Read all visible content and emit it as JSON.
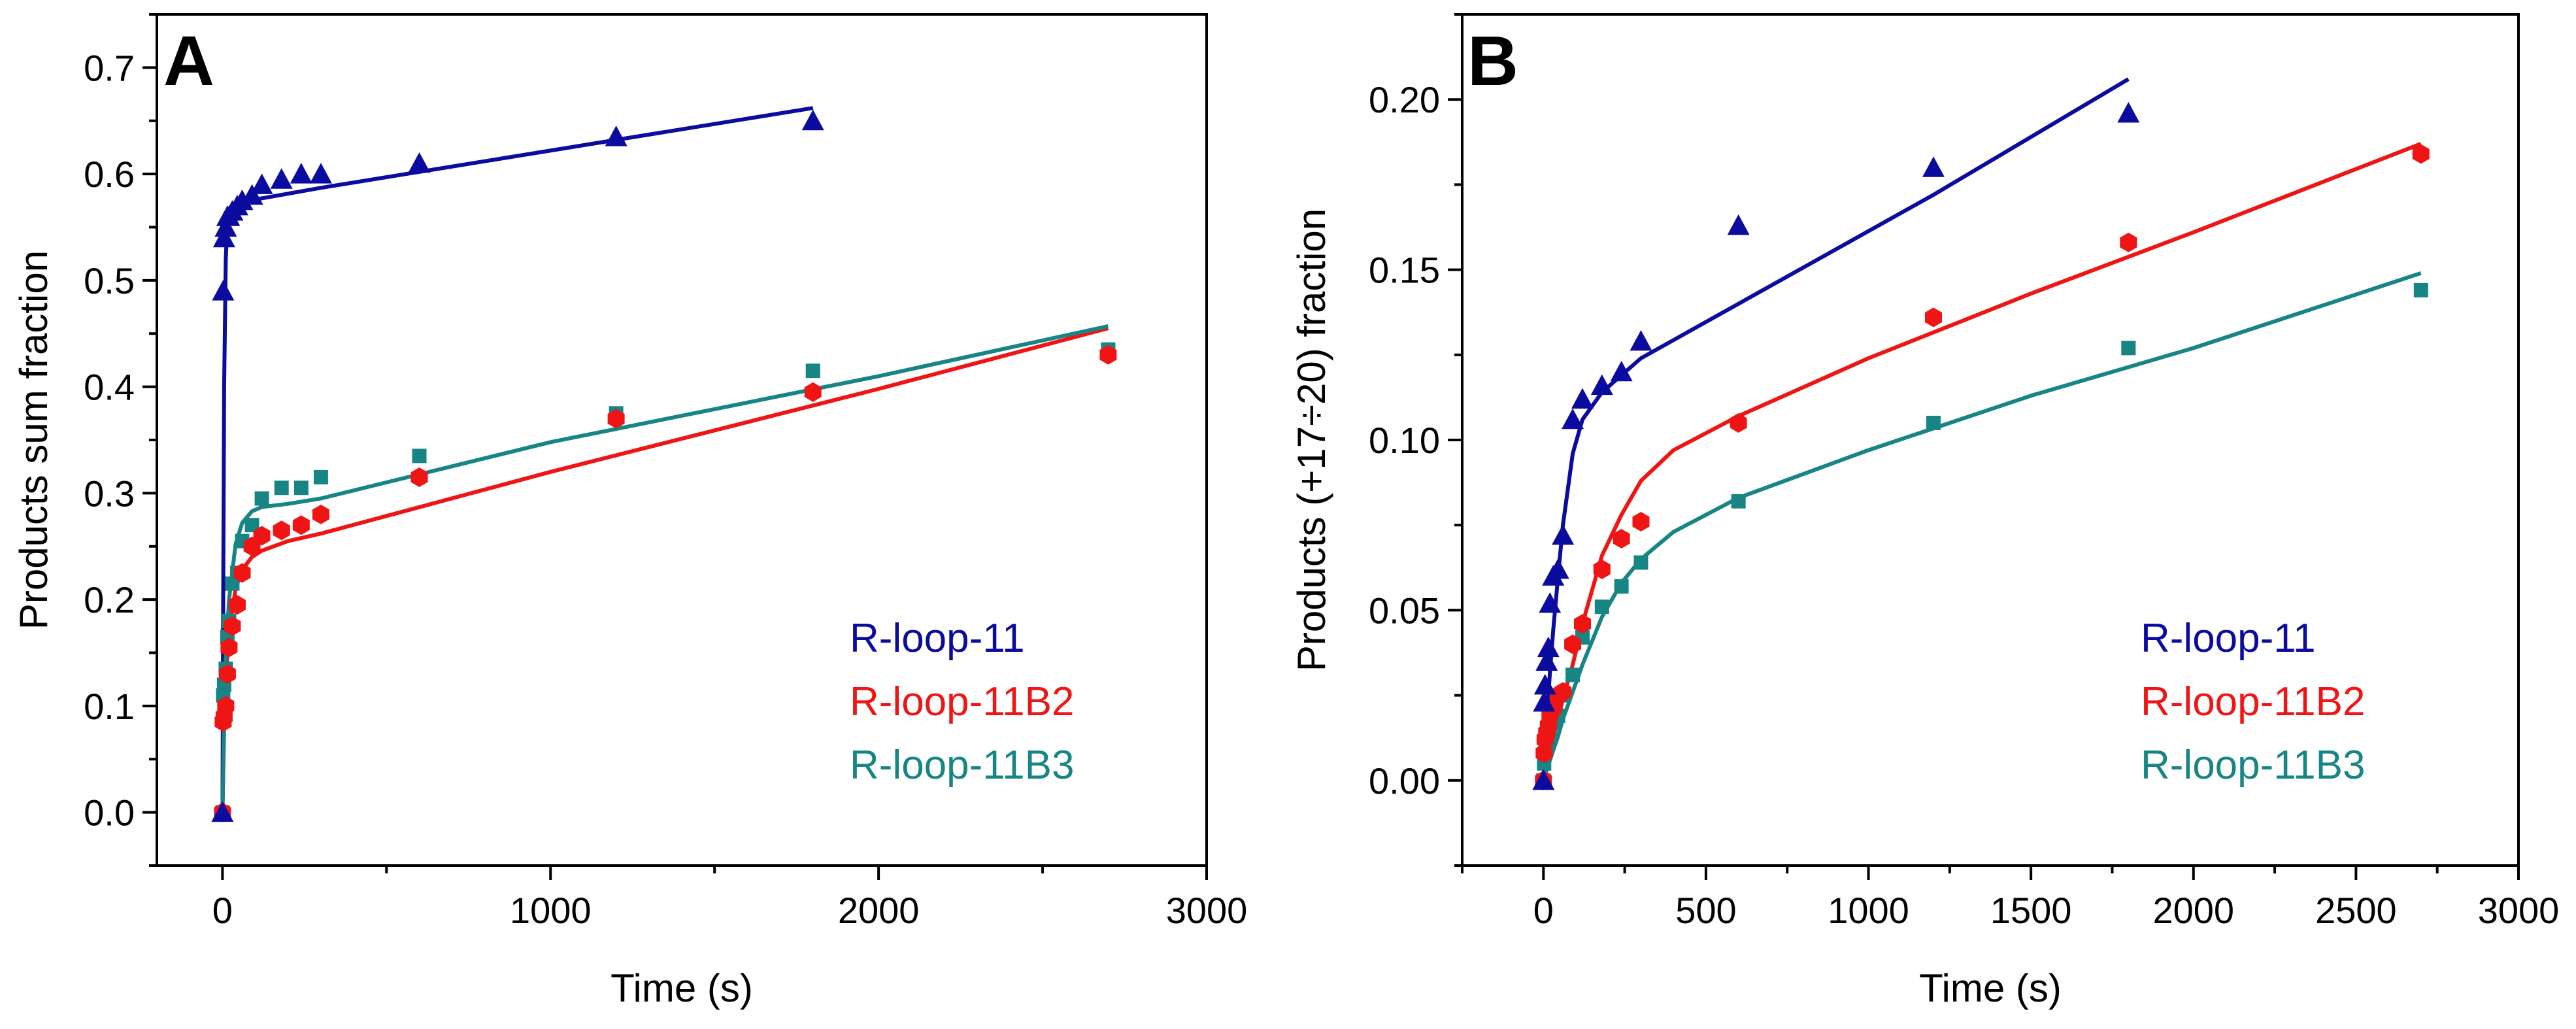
{
  "chart_data": [
    {
      "type": "scatter",
      "panel": "A",
      "xlabel": "Time (s)",
      "ylabel": "Products sum fraction",
      "xlim": [
        -200,
        3000
      ],
      "ylim": [
        -0.05,
        0.75
      ],
      "xticks": [
        0,
        1000,
        2000,
        3000
      ],
      "xtick_labels": [
        "0",
        "1000",
        "2000",
        "3000"
      ],
      "yticks": [
        0.0,
        0.1,
        0.2,
        0.3,
        0.4,
        0.5,
        0.6,
        0.7
      ],
      "ytick_labels": [
        "0.0",
        "0.1",
        "0.2",
        "0.3",
        "0.4",
        "0.5",
        "0.6",
        "0.7"
      ],
      "legend_position": "bottom-right",
      "series": [
        {
          "name": "R-loop-11",
          "color": "#0b0ba0",
          "marker": "triangle",
          "x": [
            0,
            2,
            5,
            10,
            15,
            20,
            30,
            45,
            60,
            90,
            120,
            180,
            240,
            300,
            600,
            1200,
            1800
          ],
          "y": [
            0,
            0.49,
            0.54,
            0.55,
            0.56,
            0.56,
            0.565,
            0.57,
            0.575,
            0.58,
            0.59,
            0.595,
            0.6,
            0.6,
            0.61,
            0.635,
            0.65
          ],
          "fit": [
            [
              0,
              0
            ],
            [
              2,
              0.19
            ],
            [
              5,
              0.4
            ],
            [
              10,
              0.52
            ],
            [
              15,
              0.555
            ],
            [
              20,
              0.565
            ],
            [
              30,
              0.57
            ],
            [
              60,
              0.573
            ],
            [
              100,
              0.576
            ],
            [
              300,
              0.587
            ],
            [
              800,
              0.612
            ],
            [
              1200,
              0.632
            ],
            [
              1800,
              0.662
            ]
          ]
        },
        {
          "name": "R-loop-11B2",
          "color": "#ef1515",
          "marker": "hexagon",
          "x": [
            0,
            2,
            5,
            10,
            15,
            20,
            30,
            45,
            60,
            90,
            120,
            180,
            240,
            300,
            600,
            1200,
            1800,
            2700
          ],
          "y": [
            0,
            0.085,
            0.09,
            0.1,
            0.13,
            0.155,
            0.175,
            0.195,
            0.225,
            0.25,
            0.26,
            0.265,
            0.27,
            0.28,
            0.315,
            0.37,
            0.395,
            0.43
          ],
          "fit": [
            [
              0,
              0
            ],
            [
              5,
              0.08
            ],
            [
              10,
              0.125
            ],
            [
              20,
              0.17
            ],
            [
              40,
              0.21
            ],
            [
              60,
              0.228
            ],
            [
              90,
              0.24
            ],
            [
              120,
              0.246
            ],
            [
              200,
              0.255
            ],
            [
              300,
              0.262
            ],
            [
              1000,
              0.32
            ],
            [
              2000,
              0.398
            ],
            [
              2700,
              0.455
            ]
          ]
        },
        {
          "name": "R-loop-11B3",
          "color": "#188585",
          "marker": "square",
          "x": [
            0,
            2,
            5,
            10,
            15,
            20,
            30,
            45,
            60,
            90,
            120,
            180,
            240,
            300,
            600,
            1200,
            1800,
            2700
          ],
          "y": [
            0,
            0.11,
            0.12,
            0.135,
            0.165,
            0.18,
            0.215,
            0.225,
            0.255,
            0.27,
            0.295,
            0.305,
            0.305,
            0.315,
            0.335,
            0.375,
            0.415,
            0.435
          ],
          "fit": [
            [
              0,
              0
            ],
            [
              5,
              0.09
            ],
            [
              10,
              0.145
            ],
            [
              20,
              0.2
            ],
            [
              40,
              0.252
            ],
            [
              60,
              0.272
            ],
            [
              90,
              0.283
            ],
            [
              120,
              0.287
            ],
            [
              200,
              0.29
            ],
            [
              300,
              0.295
            ],
            [
              1000,
              0.348
            ],
            [
              2000,
              0.41
            ],
            [
              2700,
              0.457
            ]
          ]
        }
      ]
    },
    {
      "type": "scatter",
      "panel": "B",
      "xlabel": "Time (s)",
      "ylabel": "Products (+17÷20) fraction",
      "xlim": [
        -250,
        3000
      ],
      "ylim": [
        -0.025,
        0.225
      ],
      "xticks": [
        0,
        500,
        1000,
        1500,
        2000,
        2500,
        3000
      ],
      "xtick_labels": [
        "0",
        "500",
        "1000",
        "1500",
        "2000",
        "2500",
        "3000"
      ],
      "yticks": [
        0.0,
        0.05,
        0.1,
        0.15,
        0.2
      ],
      "ytick_labels": [
        "0.00",
        "0.05",
        "0.10",
        "0.15",
        "0.20"
      ],
      "legend_position": "bottom-right",
      "series": [
        {
          "name": "R-loop-11",
          "color": "#0b0ba0",
          "marker": "triangle",
          "x": [
            0,
            2,
            5,
            10,
            15,
            20,
            30,
            45,
            60,
            90,
            120,
            180,
            240,
            300,
            600,
            1200,
            1800
          ],
          "y": [
            0,
            0.023,
            0.028,
            0.035,
            0.039,
            0.052,
            0.06,
            0.062,
            0.072,
            0.106,
            0.112,
            0.116,
            0.12,
            0.129,
            0.163,
            0.18,
            0.196
          ],
          "fit": [
            [
              0,
              0
            ],
            [
              10,
              0.017
            ],
            [
              20,
              0.032
            ],
            [
              30,
              0.044
            ],
            [
              45,
              0.06
            ],
            [
              60,
              0.075
            ],
            [
              90,
              0.096
            ],
            [
              120,
              0.106
            ],
            [
              180,
              0.114
            ],
            [
              240,
              0.119
            ],
            [
              300,
              0.124
            ],
            [
              600,
              0.14
            ],
            [
              1200,
              0.172
            ],
            [
              1800,
              0.206
            ]
          ]
        },
        {
          "name": "R-loop-11B2",
          "color": "#ef1515",
          "marker": "hexagon",
          "x": [
            0,
            2,
            5,
            10,
            15,
            20,
            30,
            45,
            60,
            90,
            120,
            180,
            240,
            300,
            600,
            1200,
            1800,
            2700
          ],
          "y": [
            0,
            0.008,
            0.012,
            0.014,
            0.016,
            0.019,
            0.021,
            0.025,
            0.026,
            0.04,
            0.046,
            0.062,
            0.071,
            0.076,
            0.105,
            0.136,
            0.158,
            0.184
          ],
          "fit": [
            [
              0,
              0
            ],
            [
              20,
              0.008
            ],
            [
              45,
              0.018
            ],
            [
              60,
              0.024
            ],
            [
              90,
              0.034
            ],
            [
              120,
              0.046
            ],
            [
              180,
              0.066
            ],
            [
              240,
              0.078
            ],
            [
              300,
              0.088
            ],
            [
              400,
              0.097
            ],
            [
              600,
              0.107
            ],
            [
              1000,
              0.124
            ],
            [
              1500,
              0.143
            ],
            [
              2000,
              0.161
            ],
            [
              2700,
              0.187
            ]
          ]
        },
        {
          "name": "R-loop-11B3",
          "color": "#188585",
          "marker": "square",
          "x": [
            0,
            2,
            5,
            10,
            15,
            20,
            30,
            45,
            60,
            90,
            120,
            180,
            240,
            300,
            600,
            1200,
            1800,
            2700
          ],
          "y": [
            0,
            0.005,
            0.008,
            0.01,
            0.013,
            0.015,
            0.017,
            0.019,
            0.025,
            0.031,
            0.042,
            0.051,
            0.057,
            0.064,
            0.082,
            0.105,
            0.127,
            0.144
          ],
          "fit": [
            [
              0,
              0
            ],
            [
              20,
              0.006
            ],
            [
              45,
              0.013
            ],
            [
              60,
              0.018
            ],
            [
              90,
              0.026
            ],
            [
              120,
              0.034
            ],
            [
              180,
              0.048
            ],
            [
              240,
              0.058
            ],
            [
              300,
              0.065
            ],
            [
              400,
              0.073
            ],
            [
              600,
              0.083
            ],
            [
              1000,
              0.097
            ],
            [
              1500,
              0.113
            ],
            [
              2000,
              0.127
            ],
            [
              2700,
              0.149
            ]
          ]
        }
      ]
    }
  ]
}
